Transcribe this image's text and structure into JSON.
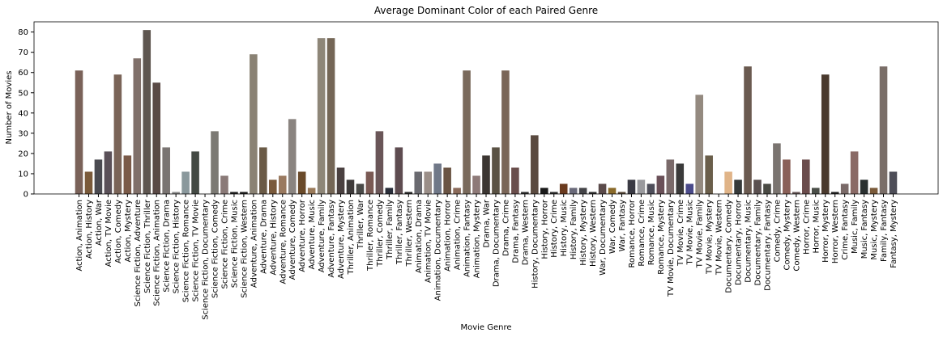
{
  "chart_data": {
    "type": "bar",
    "title": "Average Dominant Color of each Paired Genre",
    "xlabel": "Movie Genre",
    "ylabel": "Number of Movies",
    "categories": [
      "Action, Animation",
      "Action, History",
      "Action, War",
      "Action, TV Movie",
      "Action, Comedy",
      "Action, Mystery",
      "Science Fiction, Adventure",
      "Science Fiction, Thriller",
      "Science Fiction, Animation",
      "Science Fiction, Drama",
      "Science Fiction, History",
      "Science Fiction, Romance",
      "Science Fiction, TV Movie",
      "Science Fiction, Documentary",
      "Science Fiction, Comedy",
      "Science Fiction, Crime",
      "Science Fiction, Music",
      "Science Fiction, Western",
      "Adventure, Animation",
      "Adventure, Drama",
      "Adventure, History",
      "Adventure, Romance",
      "Adventure, Comedy",
      "Adventure, Horror",
      "Adventure, Music",
      "Adventure, Family",
      "Adventure, Fantasy",
      "Adventure, Mystery",
      "Thriller, Animation",
      "Thriller, War",
      "Thriller, Romance",
      "Thriller, Comedy",
      "Thriller, Family",
      "Thriller, Fantasy",
      "Thriller, Western",
      "Animation, Drama",
      "Animation, TV Movie",
      "Animation, Documentary",
      "Animation, Horror",
      "Animation, Crime",
      "Animation, Fantasy",
      "Animation, Mystery",
      "Drama, War",
      "Drama, Documentary",
      "Drama, Crime",
      "Drama, Fantasy",
      "Drama, Western",
      "History, Documentary",
      "History, Horror",
      "History, Crime",
      "History, Music",
      "History, Family",
      "History, Mystery",
      "History, Western",
      "War, Documentary",
      "War, Comedy",
      "War, Fantasy",
      "Romance, Horror",
      "Romance, Crime",
      "Romance, Music",
      "Romance, Mystery",
      "TV Movie, Documentary",
      "TV Movie, Crime",
      "TV Movie, Music",
      "TV Movie, Family",
      "TV Movie, Mystery",
      "TV Movie, Western",
      "Documentary, Comedy",
      "Documentary, Horror",
      "Documentary, Music",
      "Documentary, Family",
      "Documentary, Fantasy",
      "Comedy, Crime",
      "Comedy, Mystery",
      "Comedy, Western",
      "Horror, Crime",
      "Horror, Music",
      "Horror, Mystery",
      "Horror, Western",
      "Crime, Fantasy",
      "Music, Family",
      "Music, Fantasy",
      "Music, Mystery",
      "Family, Fantasy",
      "Fantasy, Mystery"
    ],
    "values": [
      61,
      11,
      17,
      21,
      59,
      19,
      67,
      81,
      55,
      23,
      1,
      11,
      21,
      0,
      31,
      9,
      1,
      1,
      69,
      23,
      7,
      9,
      37,
      11,
      3,
      77,
      77,
      13,
      7,
      5,
      11,
      31,
      3,
      23,
      1,
      11,
      11,
      15,
      13,
      3,
      61,
      9,
      19,
      23,
      61,
      13,
      1,
      29,
      3,
      1,
      5,
      3,
      3,
      1,
      5,
      3,
      1,
      7,
      7,
      5,
      9,
      17,
      15,
      5,
      49,
      19,
      0,
      11,
      7,
      63,
      7,
      5,
      25,
      17,
      1,
      17,
      3,
      59,
      1,
      5,
      21,
      7,
      3,
      63,
      11
    ],
    "colors": [
      "#7a6259",
      "#7a5a3a",
      "#4a4a50",
      "#5a5058",
      "#7a6458",
      "#7a5a48",
      "#80706a",
      "#5e5650",
      "#5a4a46",
      "#7a7472",
      "#8a8a8a",
      "#8a989c",
      "#444a44",
      "#888888",
      "#7c7a74",
      "#8a7a78",
      "#222222",
      "#202020",
      "#8a8274",
      "#6a5a46",
      "#7a5a3c",
      "#9a7a60",
      "#8a8480",
      "#6a4a2a",
      "#9a7a5a",
      "#8e8678",
      "#746656",
      "#4a4040",
      "#3e3a3a",
      "#4a4a48",
      "#7a5a54",
      "#6a5658",
      "#2a2e3a",
      "#5e4c50",
      "#2a2a2a",
      "#6a6a70",
      "#9a8e88",
      "#707888",
      "#6a5444",
      "#8a6a5a",
      "#7a6a5c",
      "#8e7a78",
      "#3c3632",
      "#5a5244",
      "#7a6658",
      "#6a4e4c",
      "#303030",
      "#5a4a40",
      "#1a1a1a",
      "#303030",
      "#6a3a1e",
      "#6a6a7a",
      "#444448",
      "#303030",
      "#5a4a4a",
      "#8a6a2a",
      "#5a4a3a",
      "#3a3a44",
      "#9a9a9e",
      "#4e4e5a",
      "#6a5058",
      "#7a6a6a",
      "#3a3a3a",
      "#4a4a8a",
      "#948a80",
      "#6a5e4a",
      "#c0b0a0",
      "#e0b488",
      "#363a3a",
      "#6a5a50",
      "#5a5050",
      "#4a4a44",
      "#7a7470",
      "#8a6058",
      "#6a5a5a",
      "#6a4c4c",
      "#4a4e48",
      "#4a3a2e",
      "#222222",
      "#7a6a68",
      "#8a6a66",
      "#2a3030",
      "#7a5a3a",
      "#7a6e68",
      "#4e4e58"
    ],
    "ylim": [
      0,
      85.05
    ],
    "yticks": [
      0,
      10,
      20,
      30,
      40,
      50,
      60,
      70,
      80
    ]
  }
}
